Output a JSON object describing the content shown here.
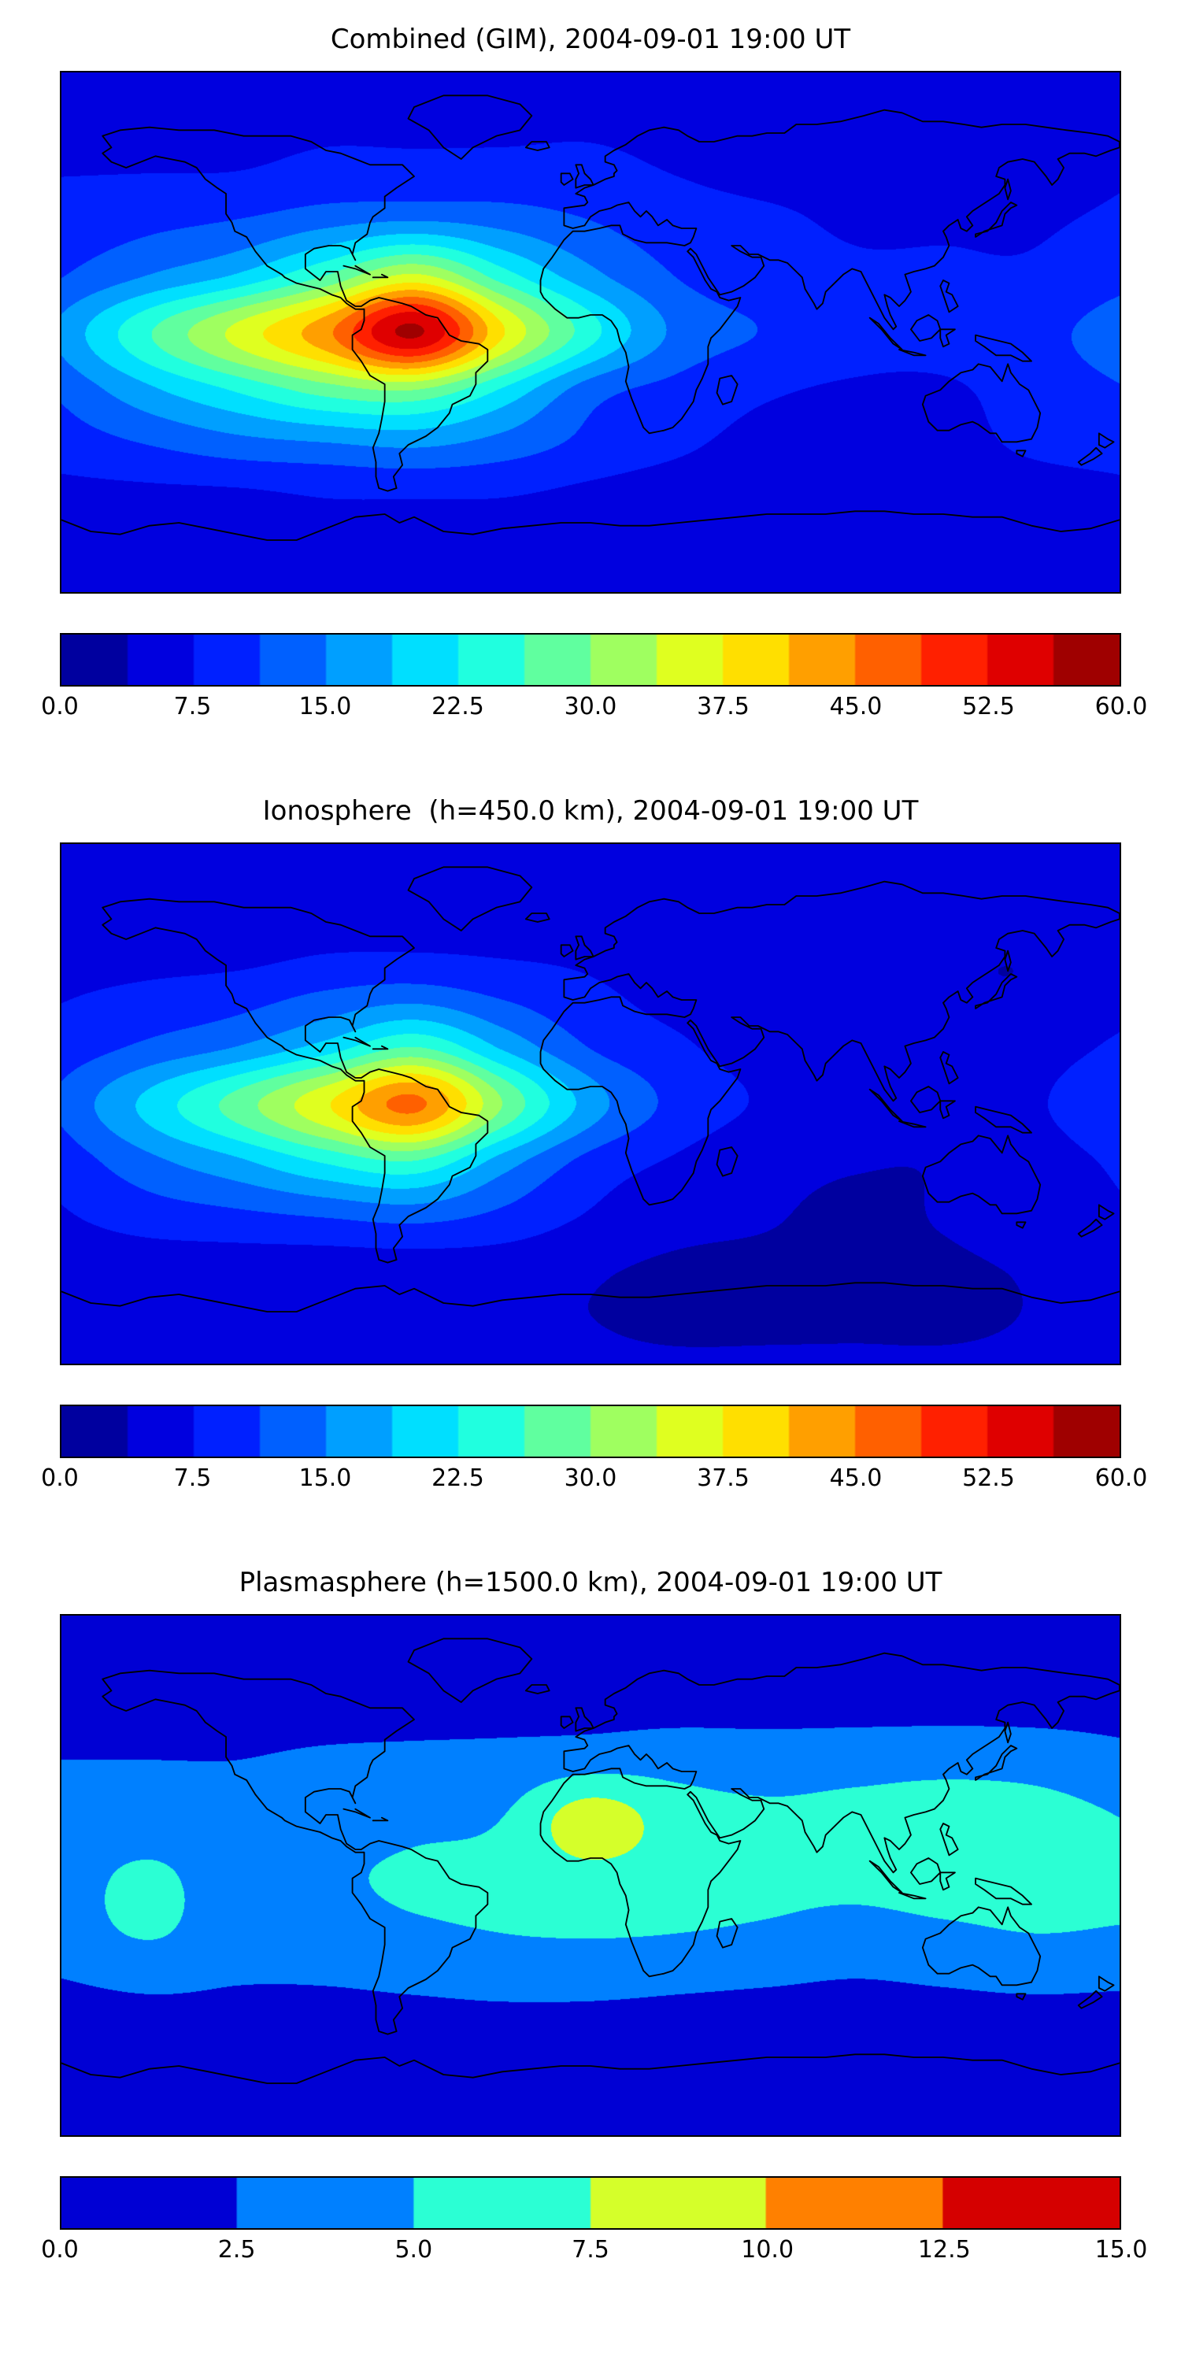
{
  "figures": [
    {
      "title": "Combined (GIM), 2004-09-01 19:00 UT",
      "colorbar_ticks": [
        "0.0",
        "7.5",
        "15.0",
        "22.5",
        "30.0",
        "37.5",
        "45.0",
        "52.5",
        "60.0"
      ]
    },
    {
      "title": "Ionosphere  (h=450.0 km), 2004-09-01 19:00 UT",
      "colorbar_ticks": [
        "0.0",
        "7.5",
        "15.0",
        "22.5",
        "30.0",
        "37.5",
        "45.0",
        "52.5",
        "60.0"
      ]
    },
    {
      "title": "Plasmasphere (h=1500.0 km), 2004-09-01 19:00 UT",
      "colorbar_ticks": [
        "0.0",
        "2.5",
        "5.0",
        "7.5",
        "10.0",
        "12.5",
        "15.0"
      ]
    }
  ],
  "chart_data": [
    {
      "type": "heatmap",
      "title": "Combined (GIM), 2004-09-01 19:00 UT",
      "colormap": "jet",
      "projection": "equirectangular",
      "xlabel": "",
      "ylabel": "",
      "lon_range": [
        -180,
        180
      ],
      "lat_range": [
        -90,
        90
      ],
      "vmin": 0,
      "vmax": 60,
      "levels": 16,
      "colorbar_ticks": [
        0.0,
        7.5,
        15.0,
        22.5,
        30.0,
        37.5,
        45.0,
        52.5,
        60.0
      ],
      "grid_lons": [
        -180,
        -150,
        -120,
        -90,
        -60,
        -30,
        0,
        30,
        60,
        90,
        120,
        150,
        180
      ],
      "grid_lats": [
        90,
        60,
        40,
        20,
        0,
        -20,
        -40,
        -60,
        -90
      ],
      "values": [
        [
          6,
          6,
          6,
          6,
          6,
          6,
          6,
          6,
          6,
          6,
          6,
          6,
          6
        ],
        [
          7,
          7,
          7,
          8,
          8,
          8,
          8,
          7,
          6,
          6,
          6,
          6,
          7
        ],
        [
          9,
          10,
          11,
          13,
          14,
          13,
          11,
          9,
          8,
          7,
          7,
          7,
          8
        ],
        [
          11,
          15,
          19,
          26,
          34,
          24,
          16,
          11,
          9,
          8,
          8,
          8,
          10
        ],
        [
          16,
          26,
          35,
          44,
          57,
          38,
          24,
          14,
          11,
          9,
          9,
          10,
          13
        ],
        [
          12,
          18,
          23,
          28,
          30,
          22,
          13,
          10,
          8,
          7,
          7,
          9,
          11
        ],
        [
          9,
          11,
          13,
          14,
          15,
          13,
          10,
          8,
          6,
          5,
          6,
          8,
          9
        ],
        [
          6,
          6,
          6,
          7,
          7,
          7,
          6,
          5,
          4,
          4,
          4,
          5,
          6
        ],
        [
          5,
          5,
          5,
          5,
          5,
          5,
          5,
          5,
          5,
          5,
          5,
          5,
          5
        ]
      ],
      "peak": {
        "value": 57,
        "lon": -60,
        "lat": 0
      }
    },
    {
      "type": "heatmap",
      "title": "Ionosphere  (h=450.0 km), 2004-09-01 19:00 UT",
      "colormap": "jet",
      "projection": "equirectangular",
      "xlabel": "",
      "ylabel": "",
      "lon_range": [
        -180,
        180
      ],
      "lat_range": [
        -90,
        90
      ],
      "vmin": 0,
      "vmax": 60,
      "levels": 16,
      "colorbar_ticks": [
        0.0,
        7.5,
        15.0,
        22.5,
        30.0,
        37.5,
        45.0,
        52.5,
        60.0
      ],
      "grid_lons": [
        -180,
        -150,
        -120,
        -90,
        -60,
        -30,
        0,
        30,
        60,
        90,
        120,
        150,
        180
      ],
      "grid_lats": [
        90,
        60,
        40,
        20,
        0,
        -20,
        -40,
        -60,
        -90
      ],
      "values": [
        [
          4,
          4,
          4,
          4,
          4,
          4,
          4,
          4,
          4,
          4,
          4,
          4,
          4
        ],
        [
          5,
          5,
          5,
          6,
          6,
          6,
          6,
          5,
          4,
          4,
          4,
          4,
          5
        ],
        [
          7,
          8,
          9,
          11,
          12,
          10,
          8,
          6,
          5,
          4,
          4,
          4,
          6
        ],
        [
          9,
          12,
          15,
          20,
          26,
          18,
          11,
          8,
          6,
          5,
          5,
          6,
          8
        ],
        [
          12,
          20,
          28,
          37,
          46,
          30,
          17,
          10,
          7,
          5,
          5,
          7,
          10
        ],
        [
          9,
          14,
          18,
          23,
          26,
          17,
          10,
          7,
          5,
          4,
          4,
          6,
          8
        ],
        [
          7,
          9,
          10,
          11,
          12,
          10,
          7,
          5,
          4,
          3,
          4,
          6,
          7
        ],
        [
          5,
          5,
          5,
          5,
          5,
          5,
          4,
          3,
          3,
          3,
          3,
          4,
          5
        ],
        [
          4,
          4,
          4,
          4,
          4,
          4,
          4,
          4,
          4,
          4,
          4,
          4,
          4
        ]
      ],
      "peak": {
        "value": 46,
        "lon": -60,
        "lat": 0
      }
    },
    {
      "type": "heatmap",
      "title": "Plasmasphere (h=1500.0 km), 2004-09-01 19:00 UT",
      "colormap": "jet",
      "projection": "equirectangular",
      "xlabel": "",
      "ylabel": "",
      "lon_range": [
        -180,
        180
      ],
      "lat_range": [
        -90,
        90
      ],
      "vmin": 0,
      "vmax": 15,
      "levels": 6,
      "colorbar_ticks": [
        0.0,
        2.5,
        5.0,
        7.5,
        10.0,
        12.5,
        15.0
      ],
      "grid_lons": [
        -180,
        -150,
        -120,
        -90,
        -60,
        -30,
        0,
        30,
        60,
        90,
        120,
        150,
        180
      ],
      "grid_lats": [
        90,
        60,
        40,
        20,
        0,
        -20,
        -40,
        -60,
        -90
      ],
      "values": [
        [
          1.2,
          1.2,
          1.2,
          1.2,
          1.2,
          1.2,
          1.2,
          1.2,
          1.2,
          1.2,
          1.2,
          1.2,
          1.2
        ],
        [
          1.6,
          1.6,
          1.6,
          1.6,
          1.6,
          1.6,
          1.6,
          1.6,
          1.6,
          1.6,
          1.6,
          1.6,
          1.6
        ],
        [
          2.5,
          2.5,
          2.5,
          2.8,
          3.0,
          3.2,
          3.8,
          4.0,
          3.8,
          4.0,
          4.2,
          4.0,
          3.2
        ],
        [
          3.5,
          3.8,
          3.2,
          3.5,
          4.2,
          5.0,
          8.8,
          6.2,
          5.5,
          5.8,
          6.2,
          6.0,
          5.0
        ],
        [
          4.2,
          5.3,
          4.0,
          4.5,
          5.5,
          5.8,
          6.8,
          6.2,
          5.8,
          5.8,
          6.3,
          6.0,
          5.5
        ],
        [
          3.8,
          5.2,
          3.6,
          3.8,
          4.5,
          5.0,
          5.2,
          5.0,
          4.6,
          4.0,
          4.5,
          5.0,
          4.8
        ],
        [
          2.2,
          2.6,
          2.4,
          2.4,
          2.6,
          2.8,
          2.8,
          2.6,
          2.4,
          2.2,
          2.4,
          2.6,
          2.5
        ],
        [
          1.6,
          1.6,
          1.6,
          1.6,
          1.6,
          1.6,
          1.6,
          1.6,
          1.6,
          1.6,
          1.6,
          1.6,
          1.6
        ],
        [
          1.2,
          1.2,
          1.2,
          1.2,
          1.2,
          1.2,
          1.2,
          1.2,
          1.2,
          1.2,
          1.2,
          1.2,
          1.2
        ]
      ],
      "peak": {
        "value": 8.8,
        "lon": 0,
        "lat": 20
      }
    }
  ]
}
